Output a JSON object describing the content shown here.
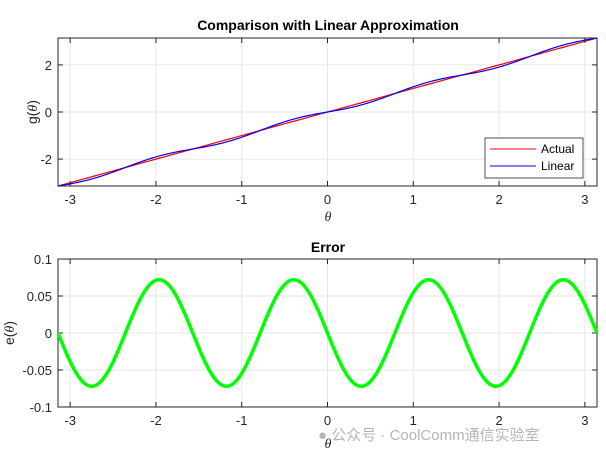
{
  "chart_data": [
    {
      "type": "line",
      "title": "Comparison with Linear Approximation",
      "xlabel": "θ",
      "ylabel": "g(θ)",
      "xlim": [
        -3.1416,
        3.1416
      ],
      "ylim": [
        -3.1416,
        3.1416
      ],
      "xticks": [
        "-3",
        "-2",
        "-1",
        "0",
        "1",
        "2",
        "3"
      ],
      "yticks": [
        "-2",
        "0",
        "2"
      ],
      "grid": true,
      "legend_position": "lower right",
      "series": [
        {
          "name": "Actual",
          "color": "#ff0000",
          "description": "g(θ) = θ (straight line)"
        },
        {
          "name": "Linear",
          "color": "#0000ff",
          "description": "θ + e(θ), slightly wavy around actual"
        }
      ]
    },
    {
      "type": "line",
      "title": "Error",
      "xlabel": "θ",
      "ylabel": "e(θ)",
      "xlim": [
        -3.1416,
        3.1416
      ],
      "ylim": [
        -0.1,
        0.1
      ],
      "xticks": [
        "-3",
        "-2",
        "-1",
        "0",
        "1",
        "2",
        "3"
      ],
      "yticks": [
        "-0.1",
        "-0.05",
        "0",
        "0.05",
        "0.1"
      ],
      "grid": true,
      "series": [
        {
          "name": "Error",
          "color": "#00ff00",
          "x": [
            -3.14,
            -2.83,
            -2.36,
            -1.88,
            -1.57,
            -1.26,
            -0.79,
            -0.31,
            0,
            0.31,
            0.79,
            1.26,
            1.57,
            1.88,
            2.36,
            2.83,
            3.14
          ],
          "values": [
            0,
            -0.072,
            0,
            0.072,
            0,
            -0.072,
            0,
            0.072,
            0,
            -0.072,
            0,
            0.072,
            0,
            -0.072,
            0,
            0.072,
            0
          ]
        }
      ]
    }
  ],
  "plot1": {
    "title": "Comparison with Linear Approximation",
    "ylabel": "g(",
    "ylabel_sym": "θ",
    "ylabel_end": ")",
    "xlabel": "θ",
    "legend": {
      "actual": "Actual",
      "linear": "Linear"
    }
  },
  "plot2": {
    "title": "Error",
    "ylabel": "e(",
    "ylabel_sym": "θ",
    "ylabel_end": ")",
    "xlabel": "θ"
  },
  "watermark": "公众号 · CoolComm通信实验室"
}
